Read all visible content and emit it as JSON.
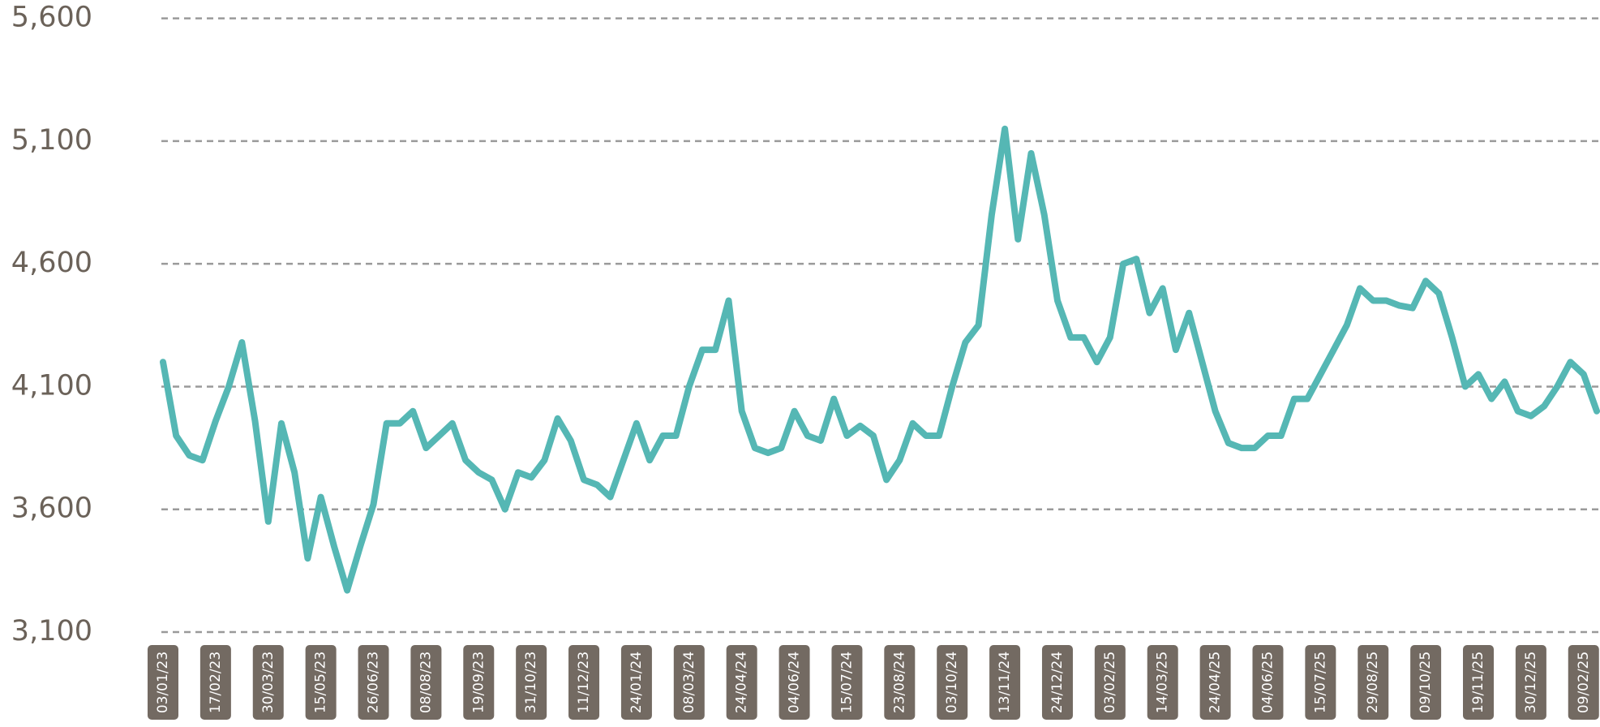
{
  "chart_data": {
    "type": "line",
    "categories": [
      "03/01/23",
      null,
      null,
      null,
      "17/02/23",
      null,
      null,
      null,
      "30/03/23",
      null,
      null,
      null,
      "15/05/23",
      null,
      null,
      null,
      "26/06/23",
      null,
      null,
      null,
      "08/08/23",
      null,
      null,
      null,
      "19/09/23",
      null,
      null,
      null,
      "31/10/23",
      null,
      null,
      null,
      "11/12/23",
      null,
      null,
      null,
      "24/01/24",
      null,
      null,
      null,
      "08/03/24",
      null,
      null,
      null,
      "24/04/24",
      null,
      null,
      null,
      "04/06/24",
      null,
      null,
      null,
      "15/07/24",
      null,
      null,
      null,
      "23/08/24",
      null,
      null,
      null,
      "03/10/24",
      null,
      null,
      null,
      "13/11/24",
      null,
      null,
      null,
      "24/12/24",
      null,
      null,
      null,
      "03/02/25",
      null,
      null,
      null,
      "14/03/25",
      null,
      null,
      null,
      "24/04/25",
      null,
      null,
      null,
      "04/06/25",
      null,
      null,
      null,
      "15/07/25",
      null,
      null,
      null,
      "29/08/25",
      null,
      null,
      null,
      "09/10/25",
      null,
      null,
      null,
      "19/11/25",
      null,
      null,
      null,
      "30/12/25",
      null,
      null,
      null,
      "09/02/25",
      null
    ],
    "series": [
      {
        "color": "#55b7b4",
        "values": [
          4200,
          3900,
          3820,
          3800,
          3960,
          4100,
          4280,
          3960,
          3550,
          3950,
          3750,
          3400,
          3650,
          3450,
          3270,
          3450,
          3620,
          3950,
          3950,
          4000,
          3850,
          3900,
          3950,
          3800,
          3750,
          3720,
          3600,
          3750,
          3730,
          3800,
          3970,
          3880,
          3720,
          3700,
          3650,
          3800,
          3950,
          3800,
          3900,
          3900,
          4100,
          4250,
          4250,
          4450,
          4000,
          3850,
          3830,
          3850,
          4000,
          3900,
          3880,
          4050,
          3900,
          3940,
          3900,
          3720,
          3800,
          3950,
          3900,
          3900,
          4100,
          4280,
          4350,
          4800,
          5150,
          4700,
          5050,
          4800,
          4450,
          4300,
          4300,
          4200,
          4300,
          4600,
          4620,
          4400,
          4500,
          4250,
          4400,
          4200,
          4000,
          3870,
          3850,
          3850,
          3900,
          3900,
          4050,
          4050,
          4150,
          4250,
          4350,
          4500,
          4450,
          4450,
          4430,
          4420,
          4530,
          4480,
          4300,
          4100,
          4150,
          4050,
          4120,
          4000,
          3980,
          4020,
          4100,
          4200,
          4150,
          4000
        ]
      }
    ],
    "ylim": [
      3100,
      5600
    ],
    "yticks": [
      {
        "value": 3100,
        "label": "3,100"
      },
      {
        "value": 3600,
        "label": "3,600"
      },
      {
        "value": 4100,
        "label": "4,100"
      },
      {
        "value": 4600,
        "label": "4,600"
      },
      {
        "value": 5100,
        "label": "5,100"
      },
      {
        "value": 5600,
        "label": "5,600"
      }
    ],
    "grid": true
  }
}
